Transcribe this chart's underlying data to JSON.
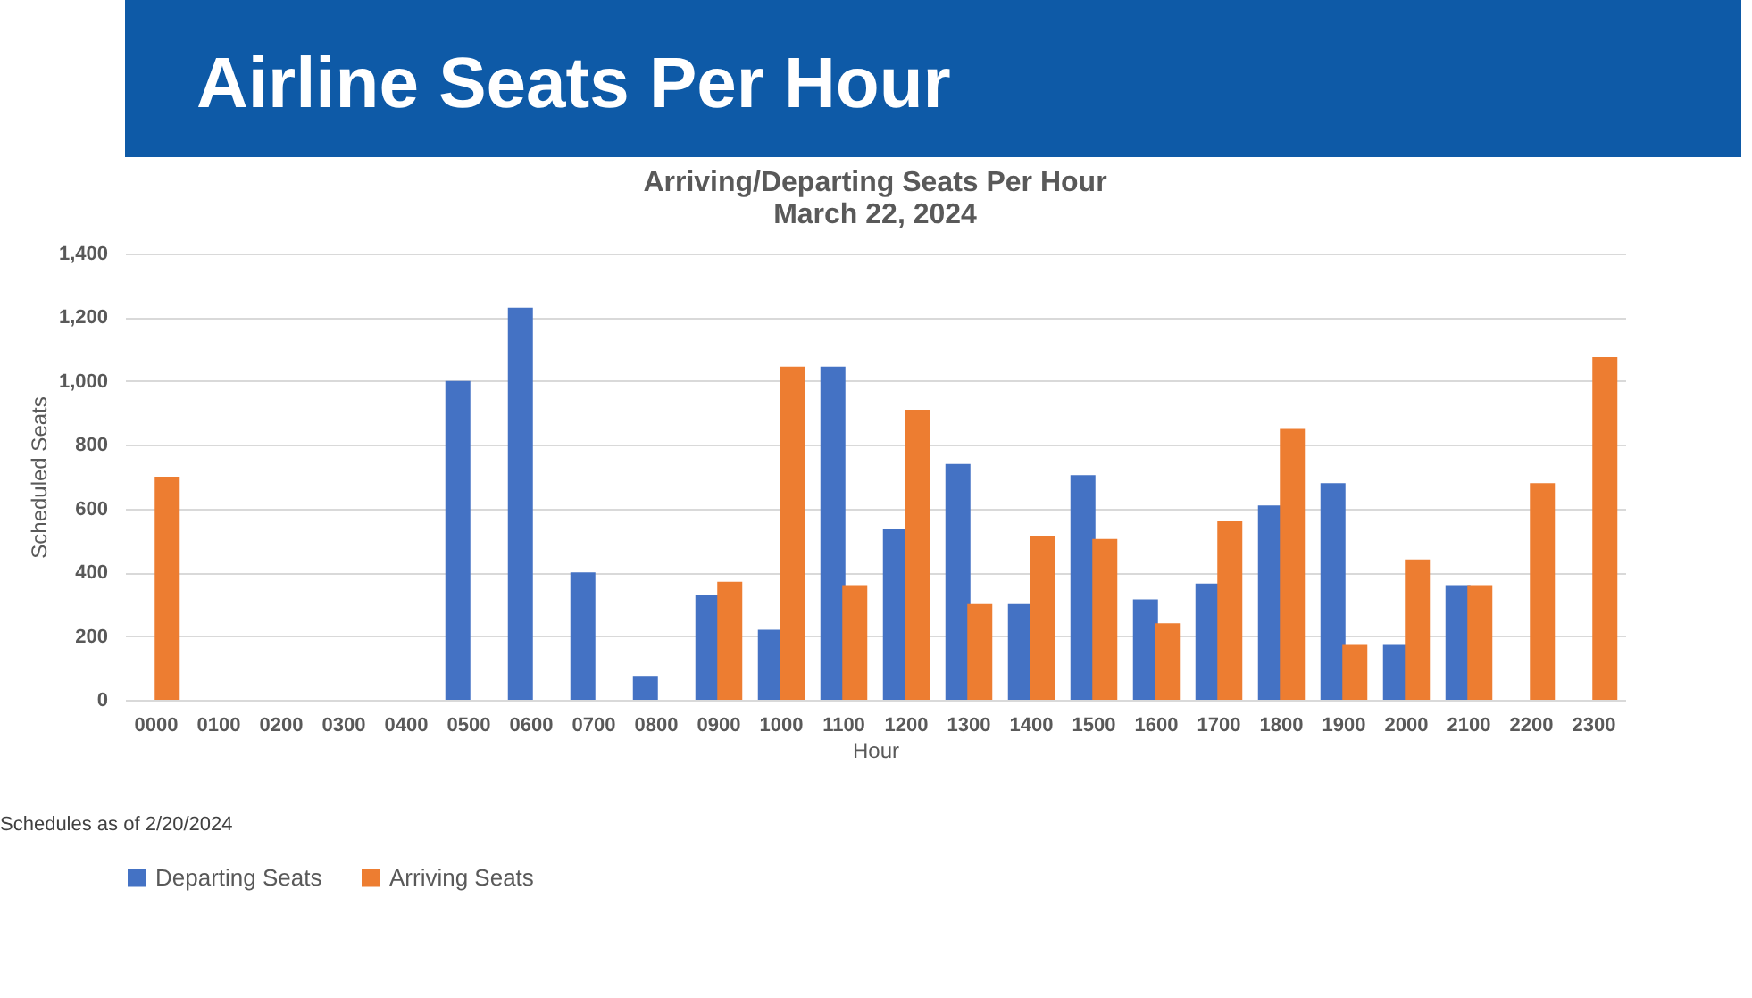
{
  "chart_data": {
    "type": "bar",
    "title": "Airline Seats Per Hour",
    "subtitle": "Arriving/Departing Seats Per Hour\nMarch 22, 2024",
    "xlabel": "Hour",
    "ylabel": "Scheduled Seats",
    "categories": [
      "0000",
      "0100",
      "0200",
      "0300",
      "0400",
      "0500",
      "0600",
      "0700",
      "0800",
      "0900",
      "1000",
      "1100",
      "1200",
      "1300",
      "1400",
      "1500",
      "1600",
      "1700",
      "1800",
      "1900",
      "2000",
      "2100",
      "2200",
      "2300"
    ],
    "series": [
      {
        "name": "Departing Seats",
        "color": "#4472c4",
        "values": [
          0,
          0,
          0,
          0,
          0,
          1000,
          1230,
          400,
          75,
          330,
          220,
          1045,
          535,
          740,
          300,
          705,
          315,
          365,
          610,
          680,
          175,
          360,
          0,
          0
        ]
      },
      {
        "name": "Arriving Seats",
        "color": "#ed7d31",
        "values": [
          700,
          0,
          0,
          0,
          0,
          0,
          0,
          0,
          0,
          370,
          1045,
          360,
          910,
          300,
          515,
          505,
          240,
          560,
          850,
          175,
          440,
          360,
          680,
          1075
        ]
      }
    ],
    "ylim": [
      0,
      1400
    ],
    "yticks": [
      0,
      200,
      400,
      600,
      800,
      {
        "value": 1000,
        "label": "1,000"
      },
      {
        "value": 1200,
        "label": "1,200"
      },
      {
        "value": 1400,
        "label": "1,400"
      }
    ],
    "grid": "y",
    "legend": "bottom",
    "annotations": [
      "Schedules as of 2/20/2024"
    ]
  }
}
